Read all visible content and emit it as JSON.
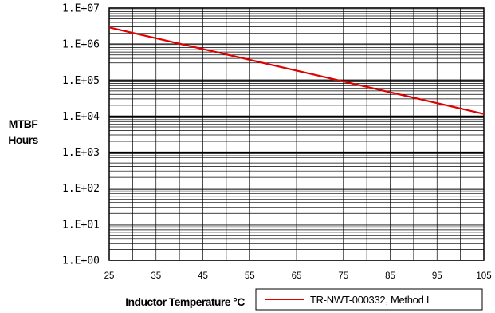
{
  "chart_data": {
    "type": "line",
    "title": "",
    "xlabel": "Inductor Temperature °C",
    "ylabel_lines": [
      "MTBF",
      "Hours"
    ],
    "xlim": [
      25,
      105
    ],
    "ylim": [
      1,
      10000000
    ],
    "y_scale": "log",
    "grid": true,
    "legend_position": "bottom-right",
    "x_ticks": [
      "25",
      "35",
      "45",
      "55",
      "65",
      "75",
      "85",
      "95",
      "105"
    ],
    "y_ticks": [
      "1.E+00",
      "1.E+01",
      "1.E+02",
      "1.E+03",
      "1.E+04",
      "1.E+05",
      "1.E+06",
      "1.E+07"
    ],
    "series": [
      {
        "name": "TR-NWT-000332, Method I",
        "color": "#e00000",
        "x": [
          25,
          105
        ],
        "y": [
          2900000,
          11500
        ]
      }
    ]
  }
}
